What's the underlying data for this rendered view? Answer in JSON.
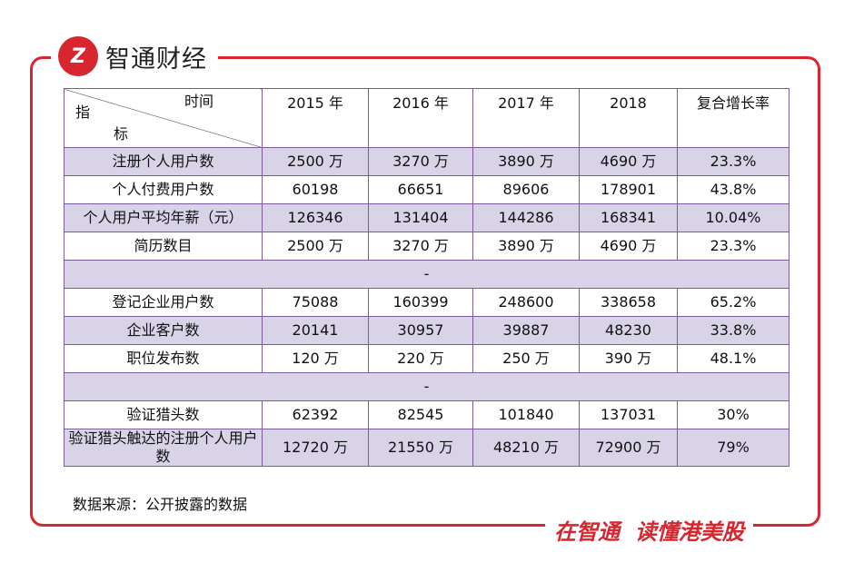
{
  "header": {
    "logo_text": "智通财经"
  },
  "table": {
    "corner": {
      "top": "时间",
      "left_top": "指",
      "left_bottom": "标"
    },
    "columns": [
      "2015 年",
      "2016 年",
      "2017 年",
      "2018",
      "复合增长率"
    ],
    "rows": [
      [
        "注册个人用户数",
        "2500 万",
        "3270 万",
        "3890 万",
        "4690 万",
        "23.3%"
      ],
      [
        "个人付费用户数",
        "60198",
        "66651",
        "89606",
        "178901",
        "43.8%"
      ],
      [
        "个人用户平均年薪（元）",
        "126346",
        "131404",
        "144286",
        "168341",
        "10.04%"
      ],
      [
        "简历数目",
        "2500 万",
        "3270 万",
        "3890 万",
        "4690 万",
        "23.3%"
      ],
      [
        "-"
      ],
      [
        "登记企业用户数",
        "75088",
        "160399",
        "248600",
        "338658",
        "65.2%"
      ],
      [
        "企业客户数",
        "20141",
        "30957",
        "39887",
        "48230",
        "33.8%"
      ],
      [
        "职位发布数",
        "120 万",
        "220 万",
        "250 万",
        "390 万",
        "48.1%"
      ],
      [
        "-"
      ],
      [
        "验证猎头数",
        "62392",
        "82545",
        "101840",
        "137031",
        "30%"
      ],
      [
        "验证猎头触达的注册个人用户数",
        "12720 万",
        "21550 万",
        "48210 万",
        "72900 万",
        "79%"
      ]
    ]
  },
  "source": "数据来源：公开披露的数据",
  "slogan": "在智通  读懂港美股"
}
